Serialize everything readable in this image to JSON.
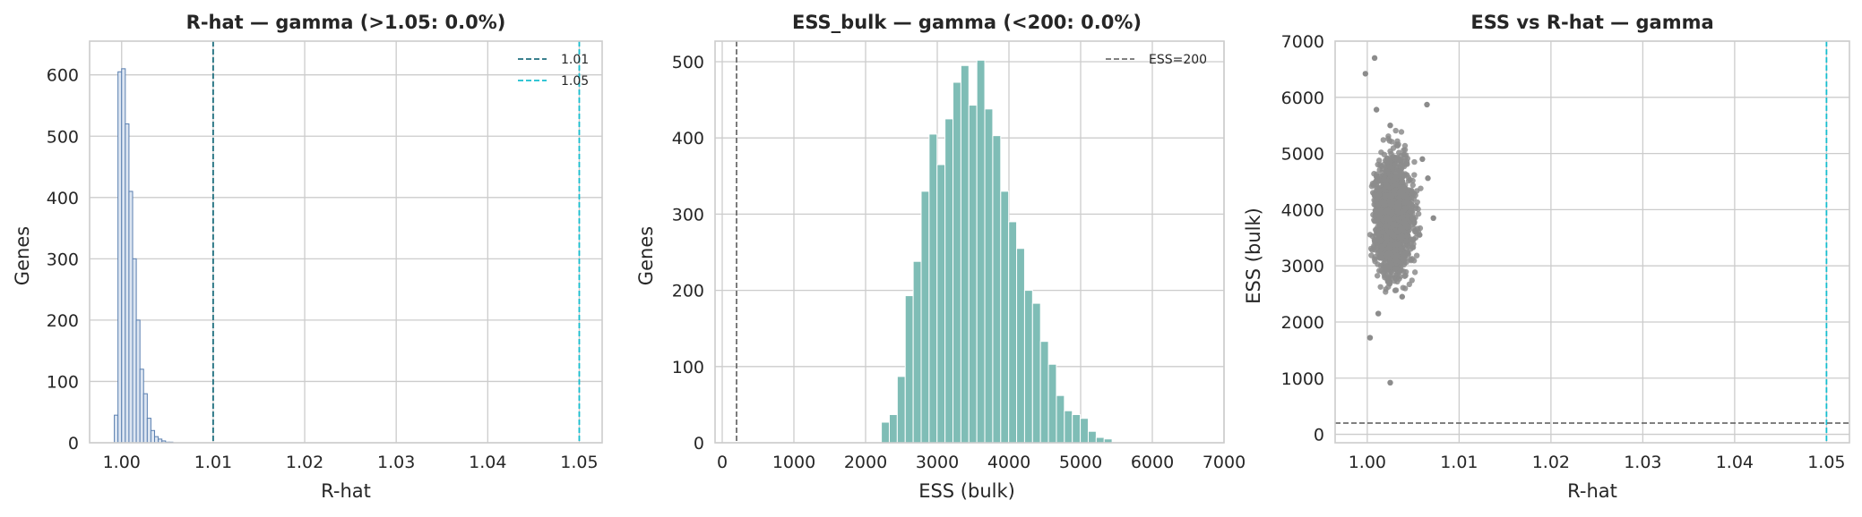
{
  "chart_data": [
    {
      "type": "bar",
      "title": "R-hat — gamma (>1.05: 0.0%)",
      "xlabel": "R-hat",
      "ylabel": "Genes",
      "xlim": [
        0.9965,
        1.0525
      ],
      "ylim": [
        0,
        655
      ],
      "xticks": [
        "1.00",
        "1.01",
        "1.02",
        "1.03",
        "1.04",
        "1.05"
      ],
      "yticks": [
        "0",
        "100",
        "200",
        "300",
        "400",
        "500",
        "600"
      ],
      "grid": true,
      "legend_position": "top-right",
      "bin_width": 0.0004,
      "bin_start": 0.9992,
      "values": [
        45,
        605,
        610,
        520,
        410,
        300,
        200,
        120,
        80,
        40,
        20,
        10,
        6,
        3,
        1,
        1
      ],
      "reference_lines": [
        {
          "name": "1.01",
          "x": 1.01,
          "color": "#1f6f7f"
        },
        {
          "name": "1.05",
          "x": 1.05,
          "color": "#17becf"
        }
      ],
      "colors": {
        "bar_face": "#dde6f2",
        "bar_edge": "#5a7fb0"
      }
    },
    {
      "type": "bar",
      "title": "ESS_bulk — gamma (<200: 0.0%)",
      "xlabel": "ESS (bulk)",
      "ylabel": "Genes",
      "xlim": [
        -100,
        7000
      ],
      "ylim": [
        0,
        527
      ],
      "xticks": [
        "0",
        "1000",
        "2000",
        "3000",
        "4000",
        "5000",
        "6000",
        "7000"
      ],
      "yticks": [
        "0",
        "100",
        "200",
        "300",
        "400",
        "500"
      ],
      "grid": true,
      "legend_position": "top-right",
      "bin_width": 111,
      "bin_start": 2220,
      "values": [
        27,
        37,
        87,
        193,
        238,
        330,
        405,
        365,
        425,
        473,
        495,
        443,
        502,
        438,
        403,
        330,
        290,
        255,
        200,
        183,
        133,
        103,
        62,
        42,
        37,
        32,
        15,
        7,
        5
      ],
      "reference_lines": [
        {
          "name": "ESS=200",
          "x": 200,
          "color": "#6e6e6e"
        }
      ],
      "colors": {
        "bar_face": "#7fbdb6",
        "bar_edge": "#ffffff"
      }
    },
    {
      "type": "scatter",
      "title": "ESS vs R-hat — gamma",
      "xlabel": "R-hat",
      "ylabel": "ESS (bulk)",
      "xlim": [
        0.9965,
        1.0525
      ],
      "ylim": [
        -150,
        7000
      ],
      "xticks": [
        "1.00",
        "1.01",
        "1.02",
        "1.03",
        "1.04",
        "1.05"
      ],
      "yticks": [
        "0",
        "1000",
        "2000",
        "3000",
        "4000",
        "5000",
        "6000",
        "7000"
      ],
      "grid": true,
      "point_count": 2000,
      "cluster": {
        "x_center": 1.002,
        "x_spread": 0.0018,
        "y_center": 3900,
        "y_spread": 700
      },
      "points": [
        {
          "x": 1.0008,
          "y": 6700
        },
        {
          "x": 0.9998,
          "y": 6420
        },
        {
          "x": 1.0065,
          "y": 5870
        },
        {
          "x": 1.0025,
          "y": 920
        },
        {
          "x": 1.0003,
          "y": 1720
        },
        {
          "x": 1.0072,
          "y": 3850
        },
        {
          "x": 1.0066,
          "y": 4560
        },
        {
          "x": 1.006,
          "y": 4900
        },
        {
          "x": 1.0057,
          "y": 3550
        },
        {
          "x": 1.005,
          "y": 3850
        },
        {
          "x": 1.001,
          "y": 5780
        },
        {
          "x": 1.0025,
          "y": 5500
        },
        {
          "x": 1.004,
          "y": 4980
        },
        {
          "x": 1.0012,
          "y": 2150
        },
        {
          "x": 1.0038,
          "y": 2450
        }
      ],
      "reference_lines": [
        {
          "orientation": "vertical",
          "x": 1.05,
          "color": "#17becf"
        },
        {
          "orientation": "horizontal",
          "y": 200,
          "color": "#6e6e6e"
        }
      ],
      "colors": {
        "point": "#8c8c8c"
      }
    }
  ]
}
